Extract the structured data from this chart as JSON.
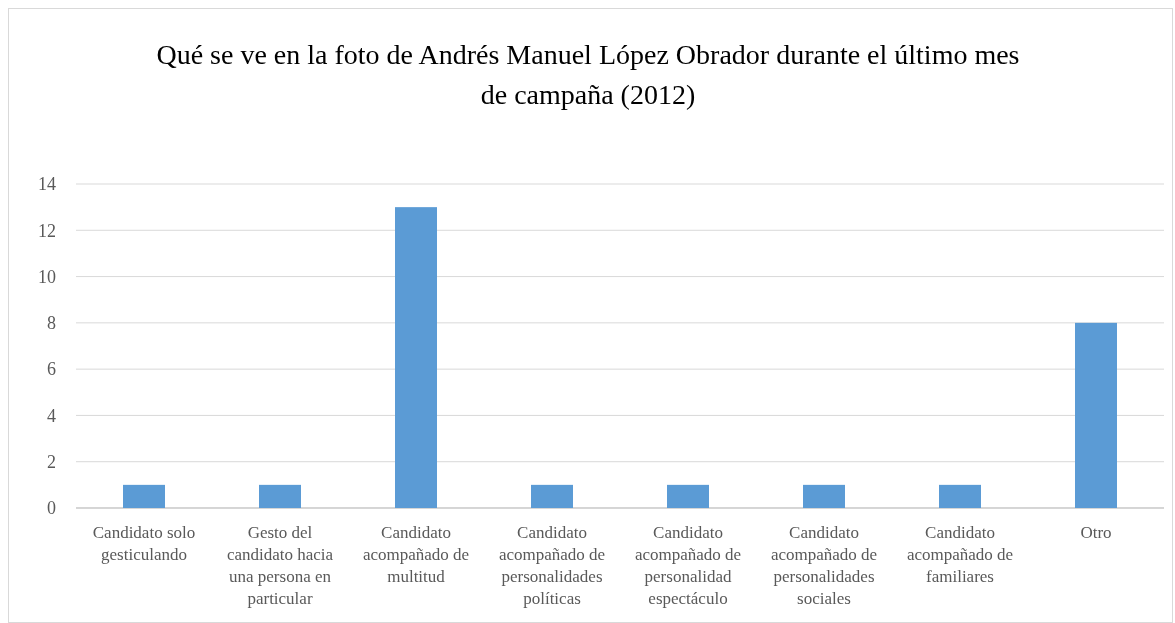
{
  "chart_data": {
    "type": "bar",
    "title": "Qué se ve en la foto de Andrés Manuel López Obrador durante el último mes de campaña (2012)",
    "categories": [
      "Candidato solo gesticulando",
      "Gesto del candidato hacia una persona en particular",
      "Candidato acompañado de multitud",
      "Candidato acompañado de personalidades políticas",
      "Candidato acompañado de personalidad espectáculo",
      "Candidato acompañado de personalidades sociales",
      "Candidato acompañado de familiares",
      "Otro"
    ],
    "values": [
      1,
      1,
      13,
      1,
      1,
      1,
      1,
      8
    ],
    "color": "#5b9bd5",
    "ylim": [
      0,
      14
    ],
    "yticks": [
      0,
      2,
      4,
      6,
      8,
      10,
      12,
      14
    ],
    "grid": "y"
  }
}
